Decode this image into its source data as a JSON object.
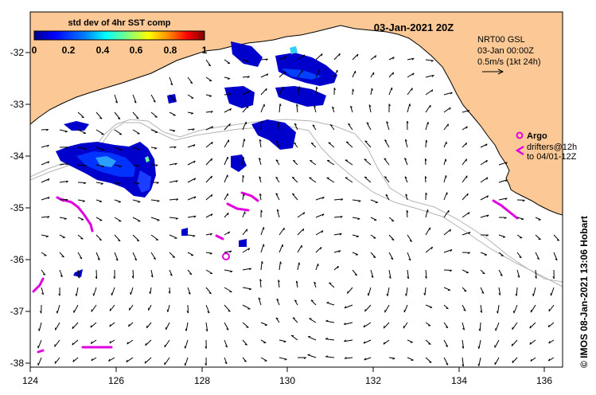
{
  "map": {
    "date_label": "03-Jan-2021 20Z",
    "credit": "© IMOS 08-Jan-2021 13:06 Hobart",
    "lon_range": [
      124,
      136.5
    ],
    "lat_range": [
      -38.1,
      -31.3
    ],
    "lon_ticks": [
      "124",
      "126",
      "128",
      "130",
      "132",
      "134",
      "136"
    ],
    "lat_ticks": [
      "-32",
      "-33",
      "-34",
      "-35",
      "-36",
      "-37",
      "-38"
    ],
    "colors": {
      "land": "#fcc996",
      "land_edge": "#000000",
      "depth_contour": "#b4b4b4",
      "argo": "#e000e0",
      "arrows": "#000000"
    }
  },
  "colorbar": {
    "title": "std dev of 4hr SST comp",
    "ticks": [
      "0",
      "0.2",
      "0.4",
      "0.6",
      "0.8",
      "1"
    ],
    "range": [
      0,
      1
    ],
    "colormap": [
      "#00008f",
      "#0000ff",
      "#0080ff",
      "#00ffff",
      "#80ff80",
      "#ffff00",
      "#ff8000",
      "#ff0000",
      "#800000"
    ]
  },
  "legend": {
    "model_lines": [
      "NRT00 GSL",
      "03-Jan 00:00Z",
      "0.5m/s (1kt 24h)"
    ],
    "argo_label": "Argo",
    "drifter_lines": [
      "drifters@12h",
      "to 04/01-12Z"
    ]
  }
}
